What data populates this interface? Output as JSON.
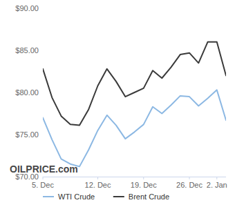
{
  "chart_data": {
    "type": "line",
    "categories": [
      "5. Dec",
      null,
      null,
      null,
      null,
      null,
      "12. Dec",
      null,
      null,
      null,
      null,
      "19. Dec",
      null,
      null,
      null,
      null,
      "26. Dec",
      null,
      null,
      "2. Jan",
      null
    ],
    "series": [
      {
        "name": "WTI Crude",
        "color": "#8cb8e3",
        "values": [
          77.0,
          74.4,
          72.1,
          71.5,
          71.2,
          73.2,
          75.5,
          77.3,
          76.1,
          74.5,
          75.3,
          76.2,
          78.3,
          77.5,
          78.5,
          79.6,
          79.5,
          78.4,
          79.3,
          80.3,
          76.7
        ]
      },
      {
        "name": "Brent Crude",
        "color": "#3a3a3a",
        "values": [
          82.8,
          79.4,
          77.2,
          76.2,
          76.1,
          78.0,
          80.8,
          82.8,
          81.3,
          79.5,
          80.0,
          80.5,
          82.6,
          81.7,
          83.0,
          84.5,
          84.7,
          83.5,
          86.0,
          86.0,
          82.0
        ]
      }
    ],
    "ylim": [
      70,
      90
    ],
    "yticks": [
      {
        "value": 70,
        "label": "$70.00"
      },
      {
        "value": 75,
        "label": "$75.00"
      },
      {
        "value": 80,
        "label": "$80.00"
      },
      {
        "value": 85,
        "label": "$85.00"
      },
      {
        "value": 90,
        "label": "$90.00"
      }
    ],
    "grid": false,
    "legend": "bottom",
    "annotations": [
      "OILPRICE.com"
    ]
  }
}
